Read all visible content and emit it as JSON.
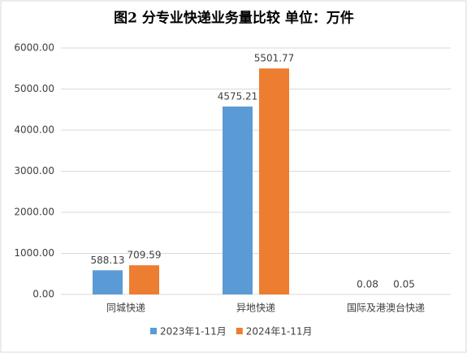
{
  "chart_data": {
    "type": "bar",
    "title": "图2  分专业快递业务量比较        单位：万件",
    "categories": [
      "同城快递",
      "异地快递",
      "国际及港澳台快递"
    ],
    "series": [
      {
        "name": "2023年1-11月",
        "color": "#5b9bd5",
        "values": [
          588.13,
          4575.21,
          0.08
        ]
      },
      {
        "name": "2024年1-11月",
        "color": "#ed7d31",
        "values": [
          709.59,
          5501.77,
          0.05
        ]
      }
    ],
    "ylim": [
      0,
      6000
    ],
    "yticks": [
      {
        "value": 0,
        "label": "0.00"
      },
      {
        "value": 1000,
        "label": "1000.00"
      },
      {
        "value": 2000,
        "label": "2000.00"
      },
      {
        "value": 3000,
        "label": "3000.00"
      },
      {
        "value": 4000,
        "label": "4000.00"
      },
      {
        "value": 5000,
        "label": "5000.00"
      },
      {
        "value": 6000,
        "label": "6000.00"
      }
    ],
    "legend": "bottom"
  }
}
